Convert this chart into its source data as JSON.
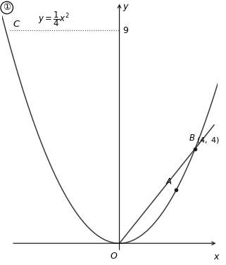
{
  "xlim": [
    -6.2,
    5.2
  ],
  "ylim": [
    -0.7,
    10.2
  ],
  "parabola_a": 0.25,
  "line_slope": 1.0,
  "point_B": [
    4,
    4
  ],
  "point_A": [
    3,
    2.25
  ],
  "point_C_x": -5.8,
  "point_C_y": 9,
  "dotted_y": 9,
  "bg_color": "#ffffff",
  "curve_color": "#3a3a3a",
  "line_color": "#3a3a3a",
  "dot_color": "#1a1a1a",
  "dotted_color": "#555555",
  "axis_color": "#1a1a1a"
}
